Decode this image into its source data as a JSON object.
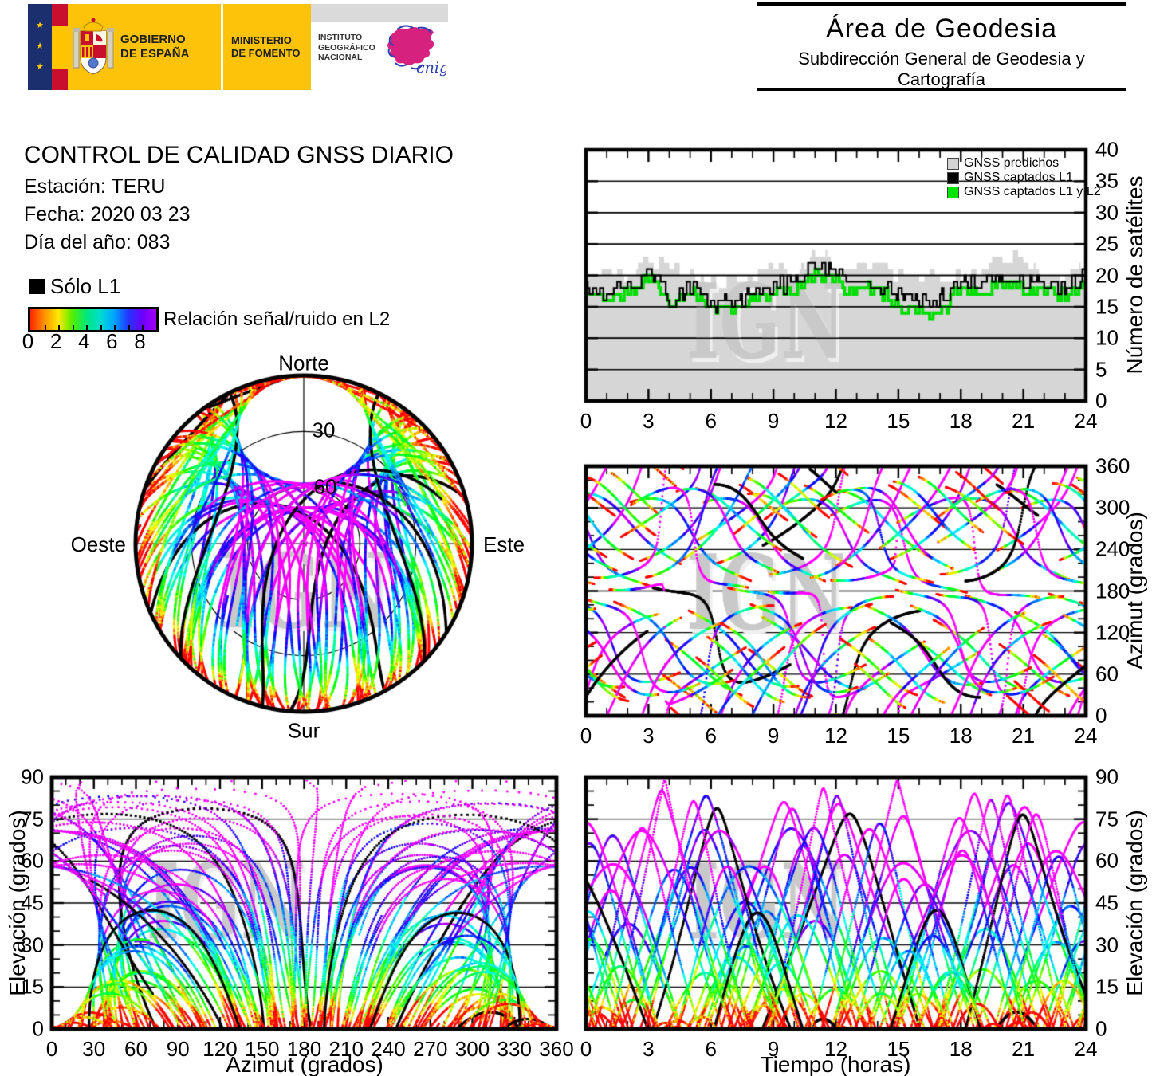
{
  "header": {
    "gobierno_l1": "GOBIERNO",
    "gobierno_l2": "DE ESPAÑA",
    "ministerio_l1": "MINISTERIO",
    "ministerio_l2": "DE FOMENTO",
    "instituto_l1": "INSTITUTO",
    "instituto_l2": "GEOGRÁFICO",
    "instituto_l3": "NACIONAL",
    "cnig": "cnig",
    "area_title": "Área de Geodesia",
    "area_subtitle": "Subdirección General de Geodesia y Cartografía"
  },
  "info": {
    "title": "CONTROL DE CALIDAD GNSS DIARIO",
    "station": "Estación: TERU",
    "date": "Fecha: 2020 03 23",
    "doy": "Día del año: 083"
  },
  "legend": {
    "solo_l1": "Sólo L1",
    "colorbar_label": "Relación señal/ruido en L2",
    "colorbar_ticks": [
      0,
      2,
      4,
      6,
      8
    ],
    "colorbar_range": [
      0,
      9
    ],
    "colorbar_stops": [
      "#ff2600",
      "#ff9000",
      "#ffe800",
      "#55ee00",
      "#00e87a",
      "#00ddd0",
      "#00a4ff",
      "#2236ff",
      "#6a00ff",
      "#a400f0"
    ]
  },
  "watermark": "IGN",
  "skyplot": {
    "north": "Norte",
    "south": "Sur",
    "east": "Este",
    "west": "Oeste",
    "ring_labels": [
      "30",
      "60"
    ]
  },
  "charts": {
    "sat_count": {
      "y_label": "Número de satélites",
      "x_ticks": [
        0,
        3,
        6,
        9,
        12,
        15,
        18,
        21,
        24
      ],
      "y_ticks": [
        0,
        5,
        10,
        15,
        20,
        25,
        30,
        35,
        40
      ],
      "legend": [
        {
          "label": "GNSS predichos",
          "color": "#d3d3d3"
        },
        {
          "label": "GNSS captados L1",
          "color": "#000000"
        },
        {
          "label": "GNSS captados L1 y L2",
          "color": "#00e400"
        }
      ]
    },
    "azimuth_time": {
      "y_label": "Azimut (grados)",
      "x_ticks": [
        0,
        3,
        6,
        9,
        12,
        15,
        18,
        21,
        24
      ],
      "y_ticks": [
        0,
        60,
        120,
        180,
        240,
        300,
        360
      ]
    },
    "elev_azimuth": {
      "y_label": "Elevación (grados)",
      "x_label": "Azimut (grados)",
      "x_ticks": [
        0,
        30,
        60,
        90,
        120,
        150,
        180,
        210,
        240,
        270,
        300,
        330,
        360
      ],
      "y_ticks": [
        0,
        15,
        30,
        45,
        60,
        75,
        90
      ]
    },
    "elev_time": {
      "y_label": "Elevación (grados)",
      "x_label": "Tiempo (horas)",
      "x_ticks": [
        0,
        3,
        6,
        9,
        12,
        15,
        18,
        21,
        24
      ],
      "y_ticks": [
        0,
        15,
        30,
        45,
        60,
        75,
        90
      ]
    }
  },
  "chart_data": [
    {
      "id": "sat_count",
      "type": "area",
      "title": "",
      "xlabel": "",
      "ylabel": "Número de satélites",
      "xlim": [
        0,
        24
      ],
      "ylim": [
        0,
        40
      ],
      "grid": "horizontal",
      "legend_position": "top-right",
      "hours": [
        0,
        1,
        2,
        3,
        4,
        5,
        6,
        7,
        8,
        9,
        10,
        11,
        12,
        13,
        14,
        15,
        16,
        17,
        18,
        19,
        20,
        21,
        22,
        23,
        24
      ],
      "series": [
        {
          "name": "GNSS predichos",
          "style": "filled-area",
          "color": "#d6d6d6",
          "values": [
            20,
            21,
            20,
            23,
            21,
            21,
            19,
            19,
            20,
            21,
            20,
            24,
            22,
            21,
            22,
            20,
            20,
            20,
            20,
            21,
            23,
            23,
            20,
            20,
            21
          ]
        },
        {
          "name": "GNSS captados L1",
          "style": "step-line",
          "color": "#000000",
          "values": [
            18,
            17,
            18,
            21,
            16,
            18,
            16,
            15,
            17,
            18,
            19,
            21,
            21,
            18,
            19,
            17,
            16,
            16,
            19,
            18,
            20,
            19,
            18,
            18,
            20
          ]
        },
        {
          "name": "GNSS captados L1 y L2",
          "style": "step-line",
          "color": "#00dd00",
          "values": [
            17,
            16,
            17,
            20,
            16,
            17,
            15,
            14,
            16,
            17,
            18,
            20,
            19,
            17,
            18,
            15,
            14,
            14,
            18,
            17,
            19,
            18,
            17,
            17,
            19
          ]
        }
      ]
    },
    {
      "id": "skyplot",
      "type": "scatter",
      "title": "",
      "projection": "polar-sky",
      "rings_elevation_deg": [
        30,
        60
      ],
      "description": "GNSS satellite sky tracks over 24 h seen from station TERU; dots colored by L2 signal/noise ratio (0-9 rainbow scale), black = L1 only"
    },
    {
      "id": "azimuth_time",
      "type": "scatter",
      "xlabel": "",
      "ylabel": "Azimut (grados)",
      "xlim": [
        0,
        24
      ],
      "ylim": [
        0,
        360
      ],
      "grid": "horizontal",
      "description": "Satellite azimuth vs time tracks colored by L2 signal/noise ratio"
    },
    {
      "id": "elev_azimuth",
      "type": "scatter",
      "xlabel": "Azimut (grados)",
      "ylabel": "Elevación (grados)",
      "xlim": [
        0,
        360
      ],
      "ylim": [
        0,
        90
      ],
      "grid": "horizontal",
      "description": "Satellite elevation vs azimuth arcs colored by L2 signal/noise ratio"
    },
    {
      "id": "elev_time",
      "type": "scatter",
      "xlabel": "Tiempo (horas)",
      "ylabel": "Elevación (grados)",
      "xlim": [
        0,
        24
      ],
      "ylim": [
        0,
        90
      ],
      "grid": "horizontal",
      "description": "Satellite elevation vs time arcs colored by L2 signal/noise ratio"
    }
  ]
}
